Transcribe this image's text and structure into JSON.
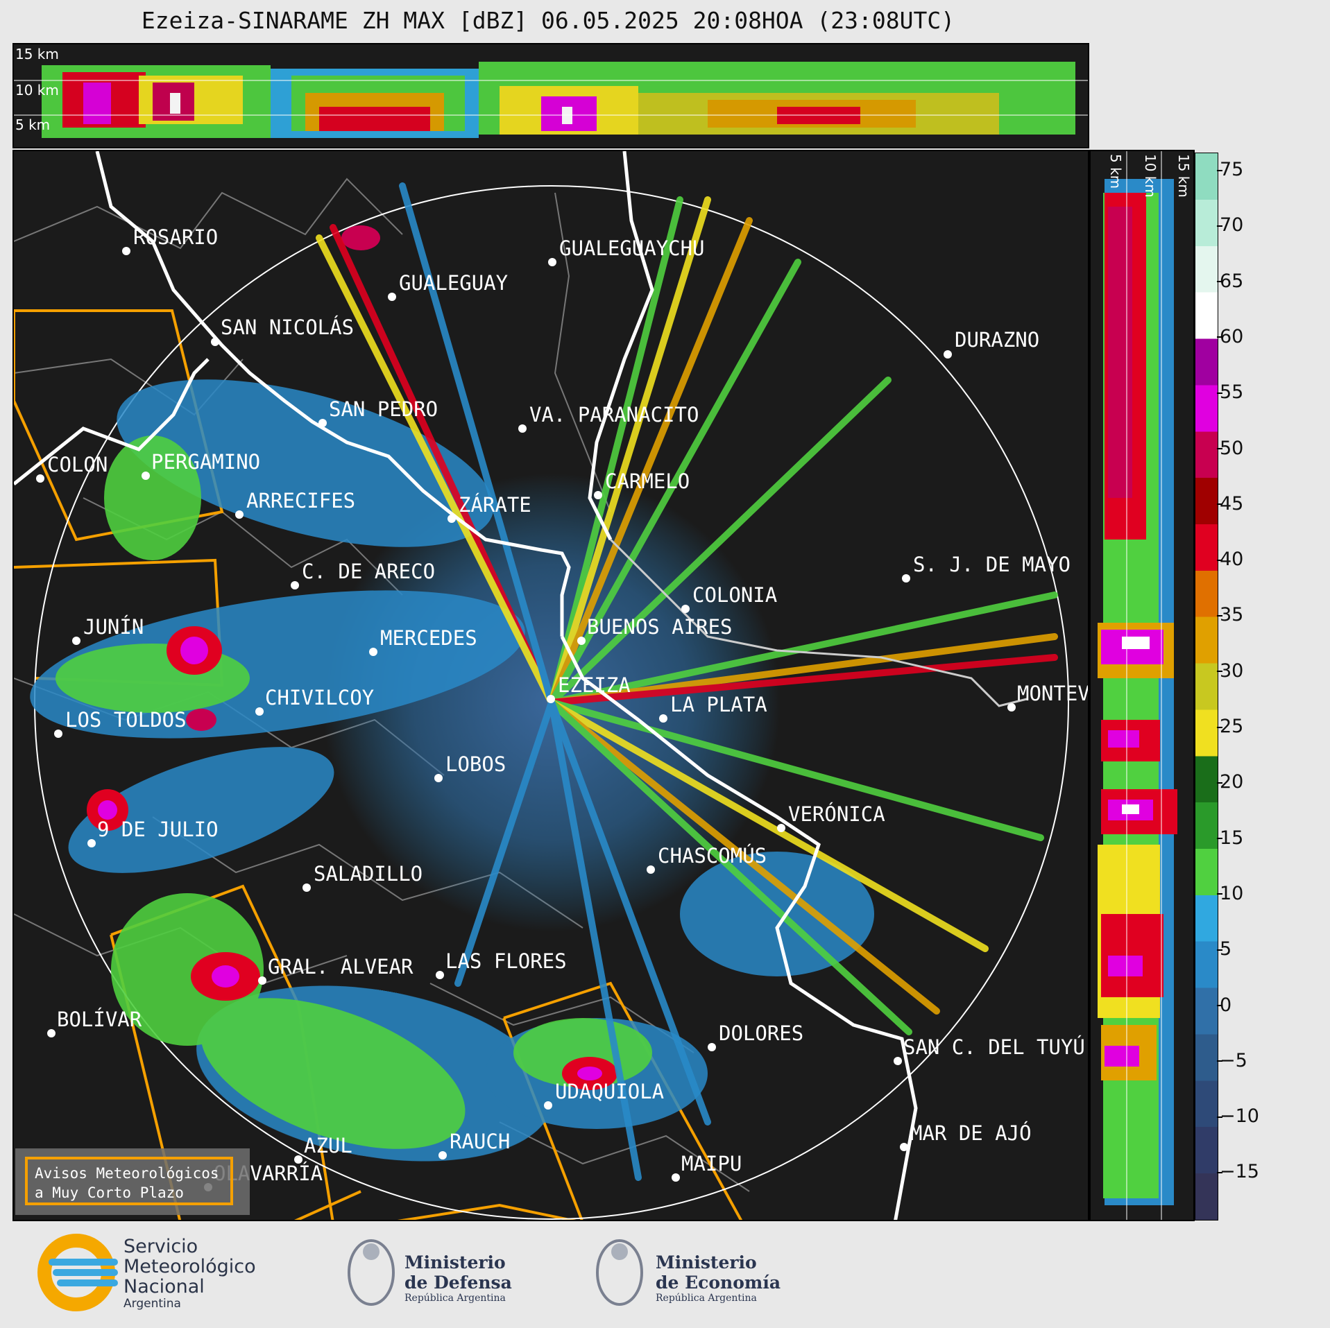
{
  "title": "Ezeiza-SINARAME ZH MAX [dBZ] 06.05.2025 20:08HOA (23:08UTC)",
  "top_panel": {
    "height_labels": [
      "15 km",
      "10 km",
      "5 km"
    ]
  },
  "side_panel": {
    "height_labels": [
      "5 km",
      "10 km",
      "15 km"
    ]
  },
  "colorbar": {
    "ticks": [
      "75",
      "70",
      "65",
      "60",
      "55",
      "50",
      "45",
      "40",
      "35",
      "30",
      "25",
      "20",
      "15",
      "10",
      "5",
      "0",
      "−5",
      "−10",
      "−15"
    ],
    "colors": [
      "#8fdcc0",
      "#b8ecd8",
      "#e4f6ee",
      "#ffffff",
      "#a000a0",
      "#e000e0",
      "#c80050",
      "#a00000",
      "#e00020",
      "#e07000",
      "#e0a000",
      "#c8c820",
      "#f0e020",
      "#1a6e1a",
      "#2a9a2a",
      "#50d040",
      "#30a8e0",
      "#2a8ac8",
      "#3070a8",
      "#2e5c8c",
      "#2e4a78",
      "#303c68",
      "#343458"
    ]
  },
  "cities": [
    {
      "name": "ROSARIO"
    },
    {
      "name": "GUALEGUAYCHU"
    },
    {
      "name": "GUALEGUAY"
    },
    {
      "name": "SAN NICOLÁS"
    },
    {
      "name": "DURAZNO"
    },
    {
      "name": "SAN PEDRO"
    },
    {
      "name": "VA. PARANACITO"
    },
    {
      "name": "COLON"
    },
    {
      "name": "PERGAMINO"
    },
    {
      "name": "CARMELO"
    },
    {
      "name": "ARRECIFES"
    },
    {
      "name": "ZÁRATE"
    },
    {
      "name": "S. J. DE MAYO"
    },
    {
      "name": "C. DE ARECO"
    },
    {
      "name": "COLONIA"
    },
    {
      "name": "JUNÍN"
    },
    {
      "name": "BUENOS AIRES"
    },
    {
      "name": "MERCEDES"
    },
    {
      "name": "EZEIZA"
    },
    {
      "name": "MONTEV"
    },
    {
      "name": "CHIVILCOY"
    },
    {
      "name": "LA PLATA"
    },
    {
      "name": "LOS TOLDOS"
    },
    {
      "name": "LOBOS"
    },
    {
      "name": "VERÓNICA"
    },
    {
      "name": "9 DE JULIO"
    },
    {
      "name": "CHASCOMÚS"
    },
    {
      "name": "SALADILLO"
    },
    {
      "name": "GRAL. ALVEAR"
    },
    {
      "name": "LAS FLORES"
    },
    {
      "name": "BOLÍVAR"
    },
    {
      "name": "DOLORES"
    },
    {
      "name": "SAN C. DEL TUYÚ"
    },
    {
      "name": "UDAQUIOLA"
    },
    {
      "name": "MAR DE AJÓ"
    },
    {
      "name": "RAUCH"
    },
    {
      "name": "AZUL"
    },
    {
      "name": "OLAVARRÍA"
    },
    {
      "name": "MAIPU"
    }
  ],
  "legend": {
    "line1": "Avisos Meteorológicos",
    "line2": "a Muy Corto Plazo",
    "border_color": "#f5a000"
  },
  "logos": {
    "smn": [
      "Servicio",
      "Meteorológico",
      "Nacional",
      "Argentina"
    ],
    "defensa": [
      "Ministerio",
      "de Defensa",
      "República Argentina"
    ],
    "economia": [
      "Ministerio",
      "de Economía",
      "República Argentina"
    ]
  }
}
